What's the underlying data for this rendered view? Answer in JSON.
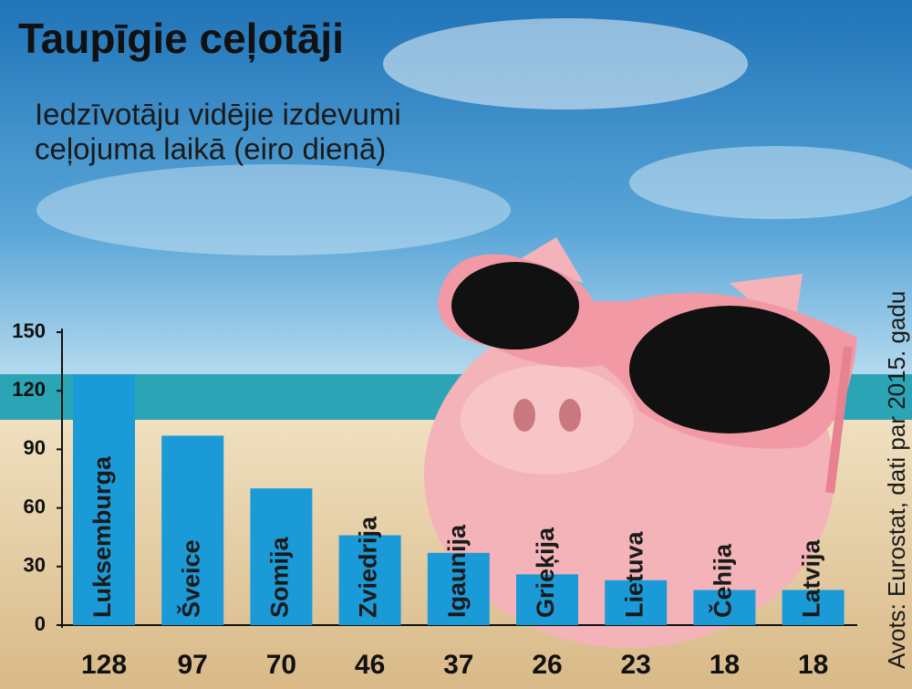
{
  "chart_data": {
    "type": "bar",
    "title": "Taupīgie ceļotāji",
    "subtitle": [
      "Iedzīvotāju vidējie izdevumi",
      "ceļojuma laikā (eiro dienā)"
    ],
    "source": "Avots: Eurostat, dati par 2015. gadu",
    "categories": [
      "Luksemburga",
      "Šveice",
      "Somija",
      "Zviedrija",
      "Igaunija",
      "Grieķija",
      "Lietuva",
      "Čehija",
      "Latvija"
    ],
    "values": [
      128,
      97,
      70,
      46,
      37,
      26,
      23,
      18,
      18
    ],
    "color": "#1b9ad8",
    "ylim": [
      0,
      150
    ],
    "yticks": [
      0,
      30,
      60,
      90,
      120,
      150
    ]
  }
}
